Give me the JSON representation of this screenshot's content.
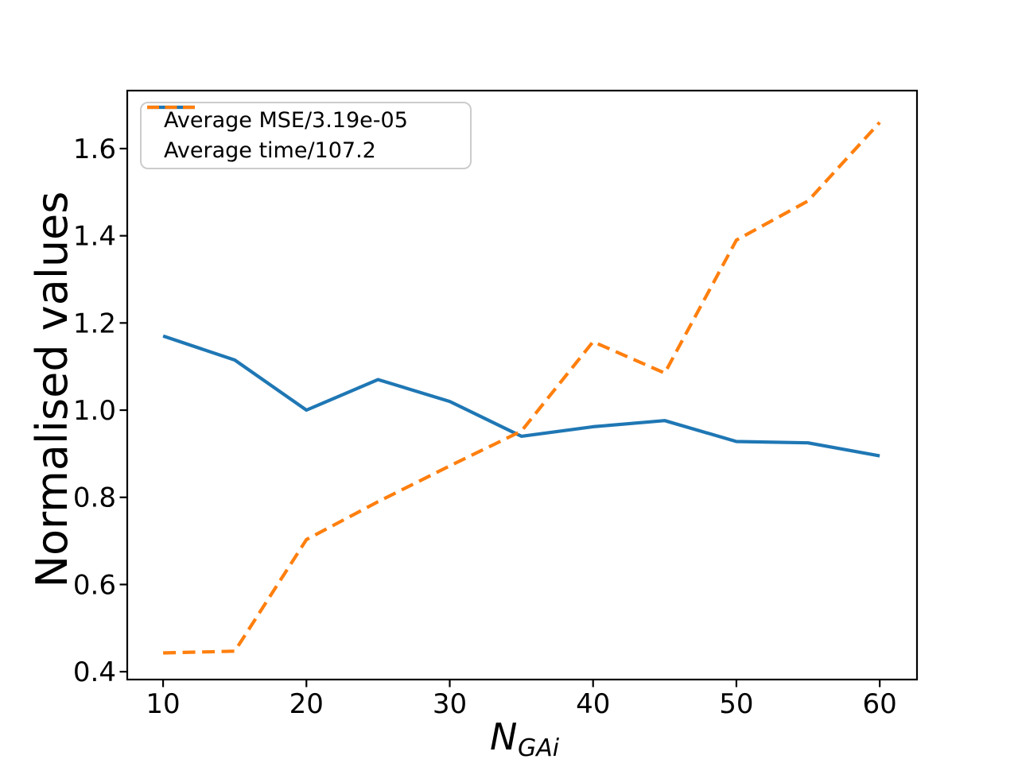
{
  "figure": {
    "background_color": "#ffffff",
    "spine_color": "#000000"
  },
  "chart_data": {
    "type": "line",
    "title": "",
    "xlabel": "N_{GAi}",
    "xlabel_display": {
      "main": "N",
      "sub": "GAi"
    },
    "ylabel": "Normalised values",
    "x": [
      10,
      15,
      20,
      25,
      30,
      35,
      40,
      45,
      50,
      55,
      60
    ],
    "series": [
      {
        "name": "Average MSE/3.19e-05",
        "values": [
          1.17,
          1.115,
          1.0,
          1.07,
          1.02,
          0.94,
          0.962,
          0.976,
          0.928,
          0.925,
          0.895
        ],
        "color": "#1f77b4",
        "line_style": "solid",
        "line_width": 4.2
      },
      {
        "name": "Average time/107.2",
        "values": [
          0.443,
          0.447,
          0.703,
          0.79,
          0.872,
          0.952,
          1.157,
          1.085,
          1.39,
          1.48,
          1.66
        ],
        "color": "#ff7f0e",
        "line_style": "dashed",
        "line_width": 4.2
      }
    ],
    "xticks": {
      "values": [
        10,
        20,
        30,
        40,
        50,
        60
      ],
      "labels": [
        "10",
        "20",
        "30",
        "40",
        "50",
        "60"
      ]
    },
    "yticks": {
      "values": [
        0.4,
        0.6,
        0.8,
        1.0,
        1.2,
        1.4,
        1.6
      ],
      "labels": [
        "0.4",
        "0.6",
        "0.8",
        "1.0",
        "1.2",
        "1.4",
        "1.6"
      ]
    },
    "xlim": [
      7.5,
      62.6
    ],
    "ylim": [
      0.382,
      1.733
    ],
    "grid": false,
    "legend_position": "upper left"
  },
  "legend": {
    "items": [
      {
        "label": "Average MSE/3.19e-05",
        "color": "#1f77b4",
        "line_style": "solid"
      },
      {
        "label": "Average time/107.2",
        "color": "#ff7f0e",
        "line_style": "dashed"
      }
    ]
  }
}
